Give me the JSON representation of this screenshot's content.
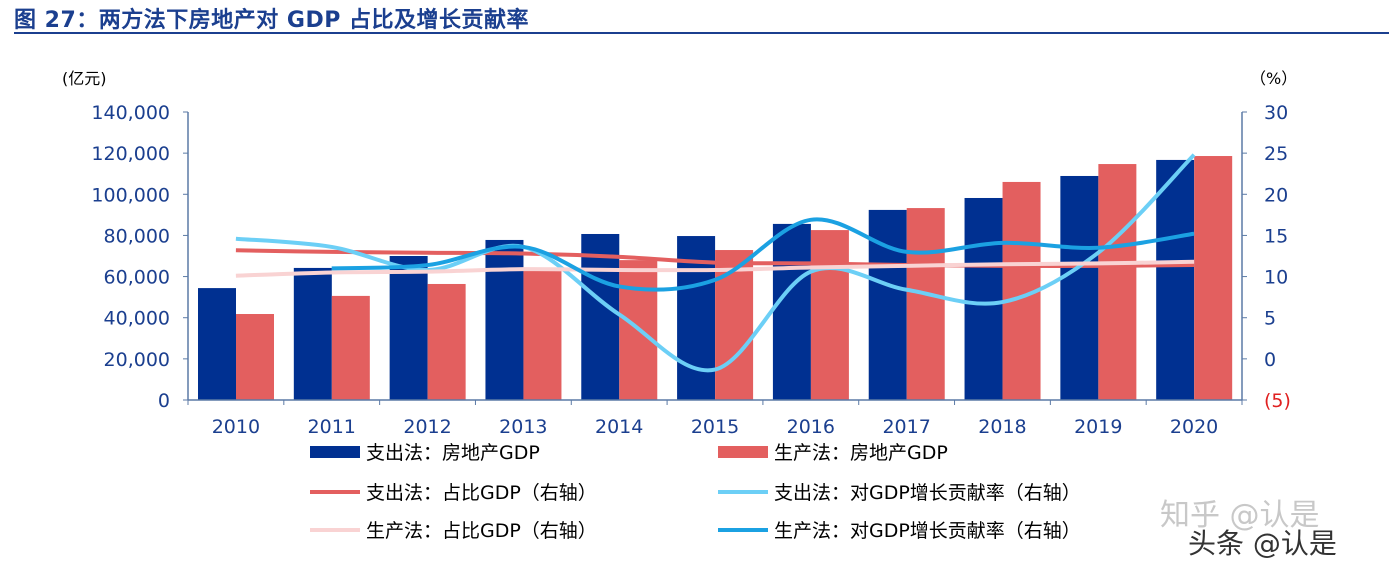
{
  "title": "图 27：两方法下房地产对 GDP 占比及增长贡献率",
  "chart_data": {
    "type": "bar+line",
    "categories": [
      "2010",
      "2011",
      "2012",
      "2013",
      "2014",
      "2015",
      "2016",
      "2017",
      "2018",
      "2019",
      "2020"
    ],
    "left_axis": {
      "label": "(亿元)",
      "range": [
        0,
        140000
      ],
      "ticks": [
        "0",
        "20,000",
        "40,000",
        "60,000",
        "80,000",
        "100,000",
        "120,000",
        "140,000"
      ]
    },
    "right_axis": {
      "label": "（%）",
      "range": [
        -5,
        30
      ],
      "ticks": [
        "(5)",
        "0",
        "5",
        "10",
        "15",
        "20",
        "25",
        "30"
      ],
      "negative_color": "#e02020"
    },
    "bar_series": [
      {
        "name": "支出法：房地产GDP",
        "color": "#003091",
        "values": [
          54400,
          64200,
          70000,
          77800,
          80700,
          79700,
          85600,
          92400,
          98200,
          108900,
          116700
        ]
      },
      {
        "name": "生产法：房地产GDP",
        "color": "#e35f5f",
        "values": [
          41800,
          50600,
          56400,
          63000,
          68000,
          72900,
          82600,
          93300,
          106000,
          114700,
          118600
        ]
      }
    ],
    "line_series": [
      {
        "name": "支出法：占比GDP（右轴）",
        "color": "#e35f5f",
        "values": [
          13.2,
          13.0,
          12.9,
          12.8,
          12.4,
          11.7,
          11.6,
          11.4,
          11.3,
          11.3,
          11.4
        ]
      },
      {
        "name": "支出法：对GDP增长贡献率（右轴）",
        "color": "#6ccff6",
        "values": [
          14.6,
          13.6,
          10.8,
          13.6,
          5.4,
          -1.3,
          10.6,
          8.4,
          6.9,
          12.9,
          24.8
        ]
      },
      {
        "name": "生产法：占比GDP（右轴）",
        "color": "#f9d3d3",
        "values": [
          10.1,
          10.5,
          10.6,
          10.9,
          10.8,
          10.8,
          11.1,
          11.3,
          11.5,
          11.6,
          11.8
        ]
      },
      {
        "name": "生产法：对GDP增长贡献率（右轴）",
        "color": "#1ba1e2",
        "values": [
          null,
          11.0,
          11.4,
          13.6,
          8.8,
          9.6,
          16.9,
          13.0,
          14.1,
          13.5,
          15.2
        ]
      }
    ],
    "legend": "bottom"
  },
  "watermarks": [
    "知乎 @认是",
    "头条 @认是"
  ]
}
